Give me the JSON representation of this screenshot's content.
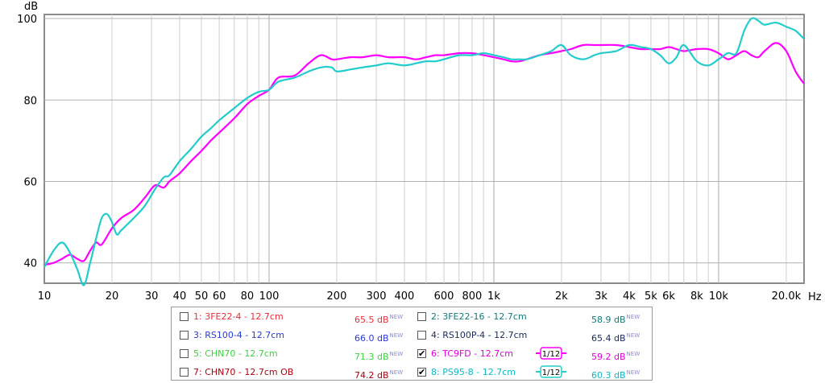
{
  "chart_data": {
    "type": "line",
    "ylabel": "dB",
    "xlabel": "Hz",
    "x_scale": "log",
    "xlim": [
      10,
      24000
    ],
    "ylim": [
      35,
      101
    ],
    "grid": true,
    "y_ticks": [
      40,
      60,
      80,
      100
    ],
    "y_tick_labels": [
      "40",
      "60",
      "80",
      "100"
    ],
    "x_ticks": [
      10,
      20,
      30,
      40,
      50,
      60,
      80,
      100,
      200,
      300,
      400,
      600,
      800,
      1000,
      2000,
      3000,
      4000,
      5000,
      6000,
      8000,
      10000,
      20000
    ],
    "x_tick_labels": [
      "10",
      "20",
      "30",
      "40",
      "50",
      "60",
      "80",
      "100",
      "200",
      "300",
      "400",
      "600",
      "800",
      "1k",
      "2k",
      "3k",
      "4k",
      "5k",
      "6k",
      "8k",
      "10k",
      "20.0k"
    ],
    "series": [
      {
        "name": "6: TC9FD - 12.7cm",
        "color": "#ff00ff",
        "x": [
          10,
          11,
          12,
          13,
          14,
          15,
          16,
          17,
          18,
          20,
          22,
          25,
          28,
          31,
          34,
          36,
          40,
          45,
          50,
          55,
          60,
          70,
          80,
          90,
          100,
          110,
          130,
          150,
          170,
          190,
          200,
          230,
          260,
          300,
          340,
          400,
          450,
          500,
          550,
          600,
          700,
          800,
          900,
          1000,
          1100,
          1200,
          1300,
          1400,
          1600,
          1800,
          2000,
          2200,
          2500,
          2800,
          3000,
          3500,
          4000,
          4500,
          5000,
          5500,
          6000,
          6500,
          7000,
          8000,
          9000,
          10000,
          11000,
          12000,
          13000,
          14000,
          15000,
          16000,
          18000,
          20000,
          22000,
          24000
        ],
        "y": [
          39.5,
          40,
          41,
          42,
          41,
          40.5,
          43,
          45,
          44.5,
          48.5,
          51,
          53,
          56,
          59,
          58.5,
          60,
          62,
          65,
          67.5,
          70,
          72,
          75.5,
          79,
          81,
          82.5,
          85.5,
          86,
          89,
          91,
          90,
          90,
          90.5,
          90.5,
          91,
          90.5,
          90.5,
          90,
          90.5,
          91,
          91,
          91.5,
          91.5,
          91,
          90.5,
          90,
          89.5,
          89.5,
          90,
          91,
          91.5,
          92,
          92.5,
          93.5,
          93.5,
          93.5,
          93.5,
          93,
          92.5,
          92.5,
          92.5,
          93,
          92.5,
          92,
          92.5,
          92.5,
          91.5,
          90,
          91,
          92,
          91,
          90.5,
          92,
          94,
          92,
          87,
          84
        ]
      },
      {
        "name": "8: PS95-8 - 12.7cm",
        "color": "#22cccc",
        "x": [
          10,
          11,
          12,
          13,
          14,
          15,
          16,
          17,
          18,
          19,
          20,
          21,
          22,
          25,
          28,
          31,
          34,
          36,
          40,
          45,
          50,
          55,
          60,
          70,
          80,
          90,
          100,
          110,
          130,
          150,
          170,
          190,
          200,
          230,
          260,
          300,
          340,
          400,
          450,
          500,
          550,
          600,
          700,
          800,
          900,
          1000,
          1100,
          1200,
          1300,
          1400,
          1600,
          1800,
          2000,
          2200,
          2500,
          2800,
          3000,
          3500,
          4000,
          4500,
          5000,
          5500,
          6000,
          6500,
          7000,
          8000,
          9000,
          10000,
          11000,
          12000,
          13000,
          14000,
          15000,
          16000,
          18000,
          20000,
          22000,
          24000
        ],
        "y": [
          39,
          43,
          45,
          42.5,
          38.5,
          34.5,
          40,
          46,
          51,
          52,
          50,
          47,
          48,
          51,
          54,
          58,
          61,
          61.5,
          65,
          68,
          71,
          73,
          75,
          78,
          80.5,
          82,
          82.5,
          84.5,
          85.5,
          87,
          88,
          88,
          87,
          87.5,
          88,
          88.5,
          89,
          88.5,
          89,
          89.5,
          89.5,
          90,
          91,
          91,
          91.5,
          91,
          90.5,
          90,
          90,
          90,
          91,
          92,
          93.5,
          91,
          90,
          91,
          91.5,
          92,
          93.5,
          93,
          92.5,
          91,
          89,
          90.5,
          93.5,
          89.5,
          88.5,
          90,
          91.5,
          91.5,
          97,
          100,
          99.5,
          98.5,
          99,
          98,
          97,
          95
        ]
      }
    ]
  },
  "legend": {
    "items": [
      {
        "label": "1: 3FE22-4 - 12.7cm",
        "value": "65.5 dB",
        "color": "#e8303a",
        "checked": false
      },
      {
        "label": "2: 3FE22-16 - 12.7cm",
        "value": "58.9 dB",
        "color": "#147a7a",
        "checked": false
      },
      {
        "label": "3: RS100-4 - 12.7cm",
        "value": "66.0 dB",
        "color": "#2a3ad8",
        "checked": false
      },
      {
        "label": "4: RS100P-4 - 12.7cm",
        "value": "65.4 dB",
        "color": "#1a2a5a",
        "checked": false
      },
      {
        "label": "5: CHN70 - 12.7cm",
        "value": "71.3 dB",
        "color": "#3ad23a",
        "checked": false
      },
      {
        "label": "6: TC9FD - 12.7cm",
        "value": "59.2 dB",
        "color": "#e000e0",
        "checked": true
      },
      {
        "label": "7: CHN70 - 12.7cm OB",
        "value": "74.2 dB",
        "color": "#b00010",
        "checked": false
      },
      {
        "label": "8: PS95-8 - 12.7cm",
        "value": "60.3 dB",
        "color": "#10b8c8",
        "checked": true
      }
    ],
    "new_tag": "NEW",
    "smoothing_label": "1/12",
    "check_mark": "✔"
  }
}
